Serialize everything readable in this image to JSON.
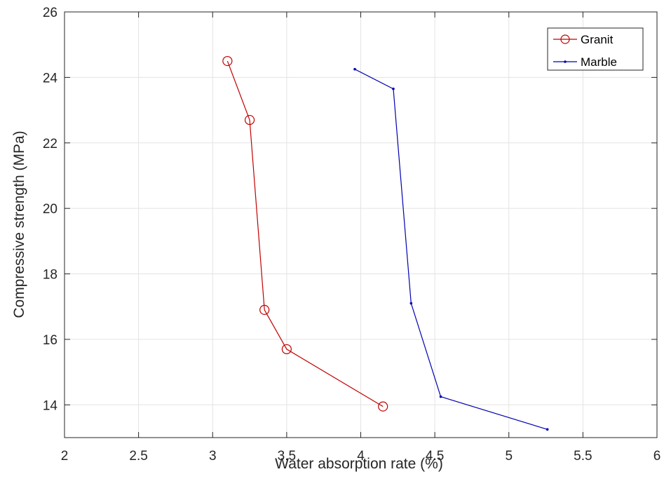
{
  "chart_data": {
    "type": "line",
    "title": "",
    "xlabel": "Water absorption rate (%)",
    "ylabel": "Compressive strength (MPa)",
    "xlim": [
      2,
      6
    ],
    "ylim": [
      13,
      26
    ],
    "x_ticks": [
      2,
      2.5,
      3,
      3.5,
      4,
      4.5,
      5,
      5.5,
      6
    ],
    "x_tick_labels": [
      "2",
      "2.5",
      "3",
      "3.5",
      "4",
      "4.5",
      "5",
      "5.5",
      "6"
    ],
    "y_ticks": [
      14,
      16,
      18,
      20,
      22,
      24,
      26
    ],
    "y_tick_labels": [
      "14",
      "16",
      "18",
      "20",
      "22",
      "24",
      "26"
    ],
    "grid": true,
    "legend_position": "top-right",
    "series": [
      {
        "name": "Granit",
        "color": "#c00000",
        "marker": "circle",
        "x": [
          3.1,
          3.25,
          3.35,
          3.5,
          4.15
        ],
        "y": [
          24.5,
          22.7,
          16.9,
          15.7,
          13.95
        ]
      },
      {
        "name": "Marble",
        "color": "#0000b0",
        "marker": "dot",
        "x": [
          3.96,
          4.22,
          4.34,
          4.54,
          5.26
        ],
        "y": [
          24.25,
          23.65,
          17.1,
          14.25,
          13.25
        ]
      }
    ]
  }
}
